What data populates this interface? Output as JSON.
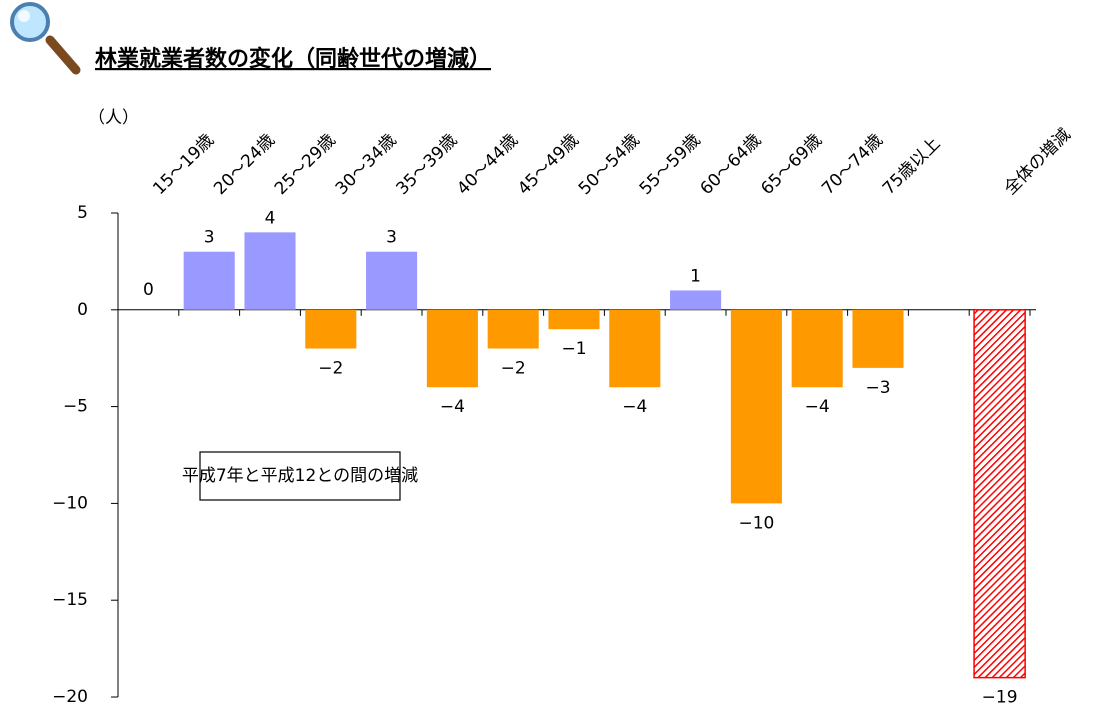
{
  "chart_data": {
    "type": "bar",
    "title": "林業就業者数の変化（同齢世代の増減）",
    "y_label": "（人）",
    "annotation": "平成7年と平成12との間の増減",
    "categories": [
      "15～19歳",
      "20～24歳",
      "25～29歳",
      "30～34歳",
      "35～39歳",
      "40～44歳",
      "45～49歳",
      "50～54歳",
      "55～59歳",
      "60～64歳",
      "65～69歳",
      "70～74歳",
      "75歳以上",
      null,
      "全体の増減"
    ],
    "values": [
      0,
      3,
      4,
      -2,
      3,
      -4,
      -2,
      -1,
      -4,
      1,
      -10,
      -4,
      -3,
      null,
      -19
    ],
    "value_labels": [
      "0",
      "3",
      "4",
      "−2",
      "3",
      "−4",
      "−2",
      "−1",
      "−4",
      "1",
      "−10",
      "−4",
      "−3",
      null,
      "−19"
    ],
    "colors": [
      "#9999ff",
      "#9999ff",
      "#9999ff",
      "#ff9900",
      "#9999ff",
      "#ff9900",
      "#ff9900",
      "#ff9900",
      "#ff9900",
      "#9999ff",
      "#ff9900",
      "#ff9900",
      "#ff9900",
      null,
      "#ff0000"
    ],
    "patterns": [
      "solid",
      "solid",
      "solid",
      "solid",
      "solid",
      "solid",
      "solid",
      "solid",
      "solid",
      "solid",
      "solid",
      "solid",
      "solid",
      null,
      "hatch"
    ],
    "ylim": [
      -20,
      5
    ],
    "yticks": [
      {
        "value": -20,
        "label": "−20"
      },
      {
        "value": -15,
        "label": "−15"
      },
      {
        "value": -10,
        "label": "−10"
      },
      {
        "value": -5,
        "label": "−5"
      },
      0,
      5
    ]
  }
}
